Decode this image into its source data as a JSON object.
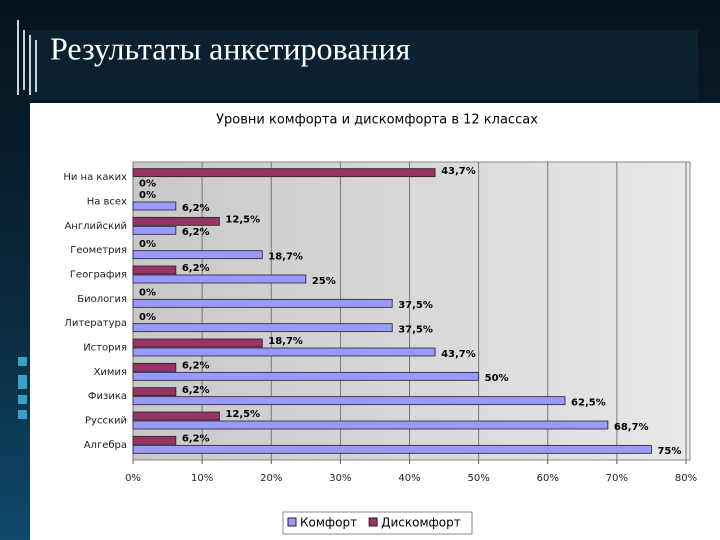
{
  "header": {
    "title": "Результаты анкетирования"
  },
  "chart_data": {
    "type": "hbar",
    "title": "Уровни комфорта и дискомфорта в 12 классах",
    "categories": [
      "Ни на каких",
      "На всех",
      "Английский",
      "Геометрия",
      "География",
      "Биология",
      "Литература",
      "История",
      "Химия",
      "Физика",
      "Русский",
      "Алгебра"
    ],
    "series": [
      {
        "name": "Комфорт",
        "color": "#9999ff",
        "values": [
          0,
          6.2,
          6.2,
          18.7,
          25,
          37.5,
          37.5,
          43.7,
          50,
          62.5,
          68.7,
          75
        ],
        "value_labels": [
          "0%",
          "6,2%",
          "6,2%",
          "18,7%",
          "25%",
          "37,5%",
          "37,5%",
          "43,7%",
          "50%",
          "62,5%",
          "68,7%",
          "75%"
        ]
      },
      {
        "name": "Дискомфорт",
        "color": "#993366",
        "values": [
          43.7,
          0,
          12.5,
          0,
          6.2,
          0,
          0,
          18.7,
          6.2,
          6.2,
          12.5,
          6.2
        ],
        "value_labels": [
          "43,7%",
          "0%",
          "12,5%",
          "0%",
          "6,2%",
          "0%",
          "0%",
          "18,7%",
          "6,2%",
          "6,2%",
          "12,5%",
          "6,2%"
        ]
      }
    ],
    "xlim": [
      0,
      80
    ],
    "xticks": [
      {
        "value": 0,
        "label": "0%"
      },
      {
        "value": 10,
        "label": "10%"
      },
      {
        "value": 20,
        "label": "20%"
      },
      {
        "value": 30,
        "label": "30%"
      },
      {
        "value": 40,
        "label": "40%"
      },
      {
        "value": 50,
        "label": "50%"
      },
      {
        "value": 60,
        "label": "60%"
      },
      {
        "value": 70,
        "label": "70%"
      },
      {
        "value": 80,
        "label": "80%"
      }
    ],
    "grid": true
  }
}
